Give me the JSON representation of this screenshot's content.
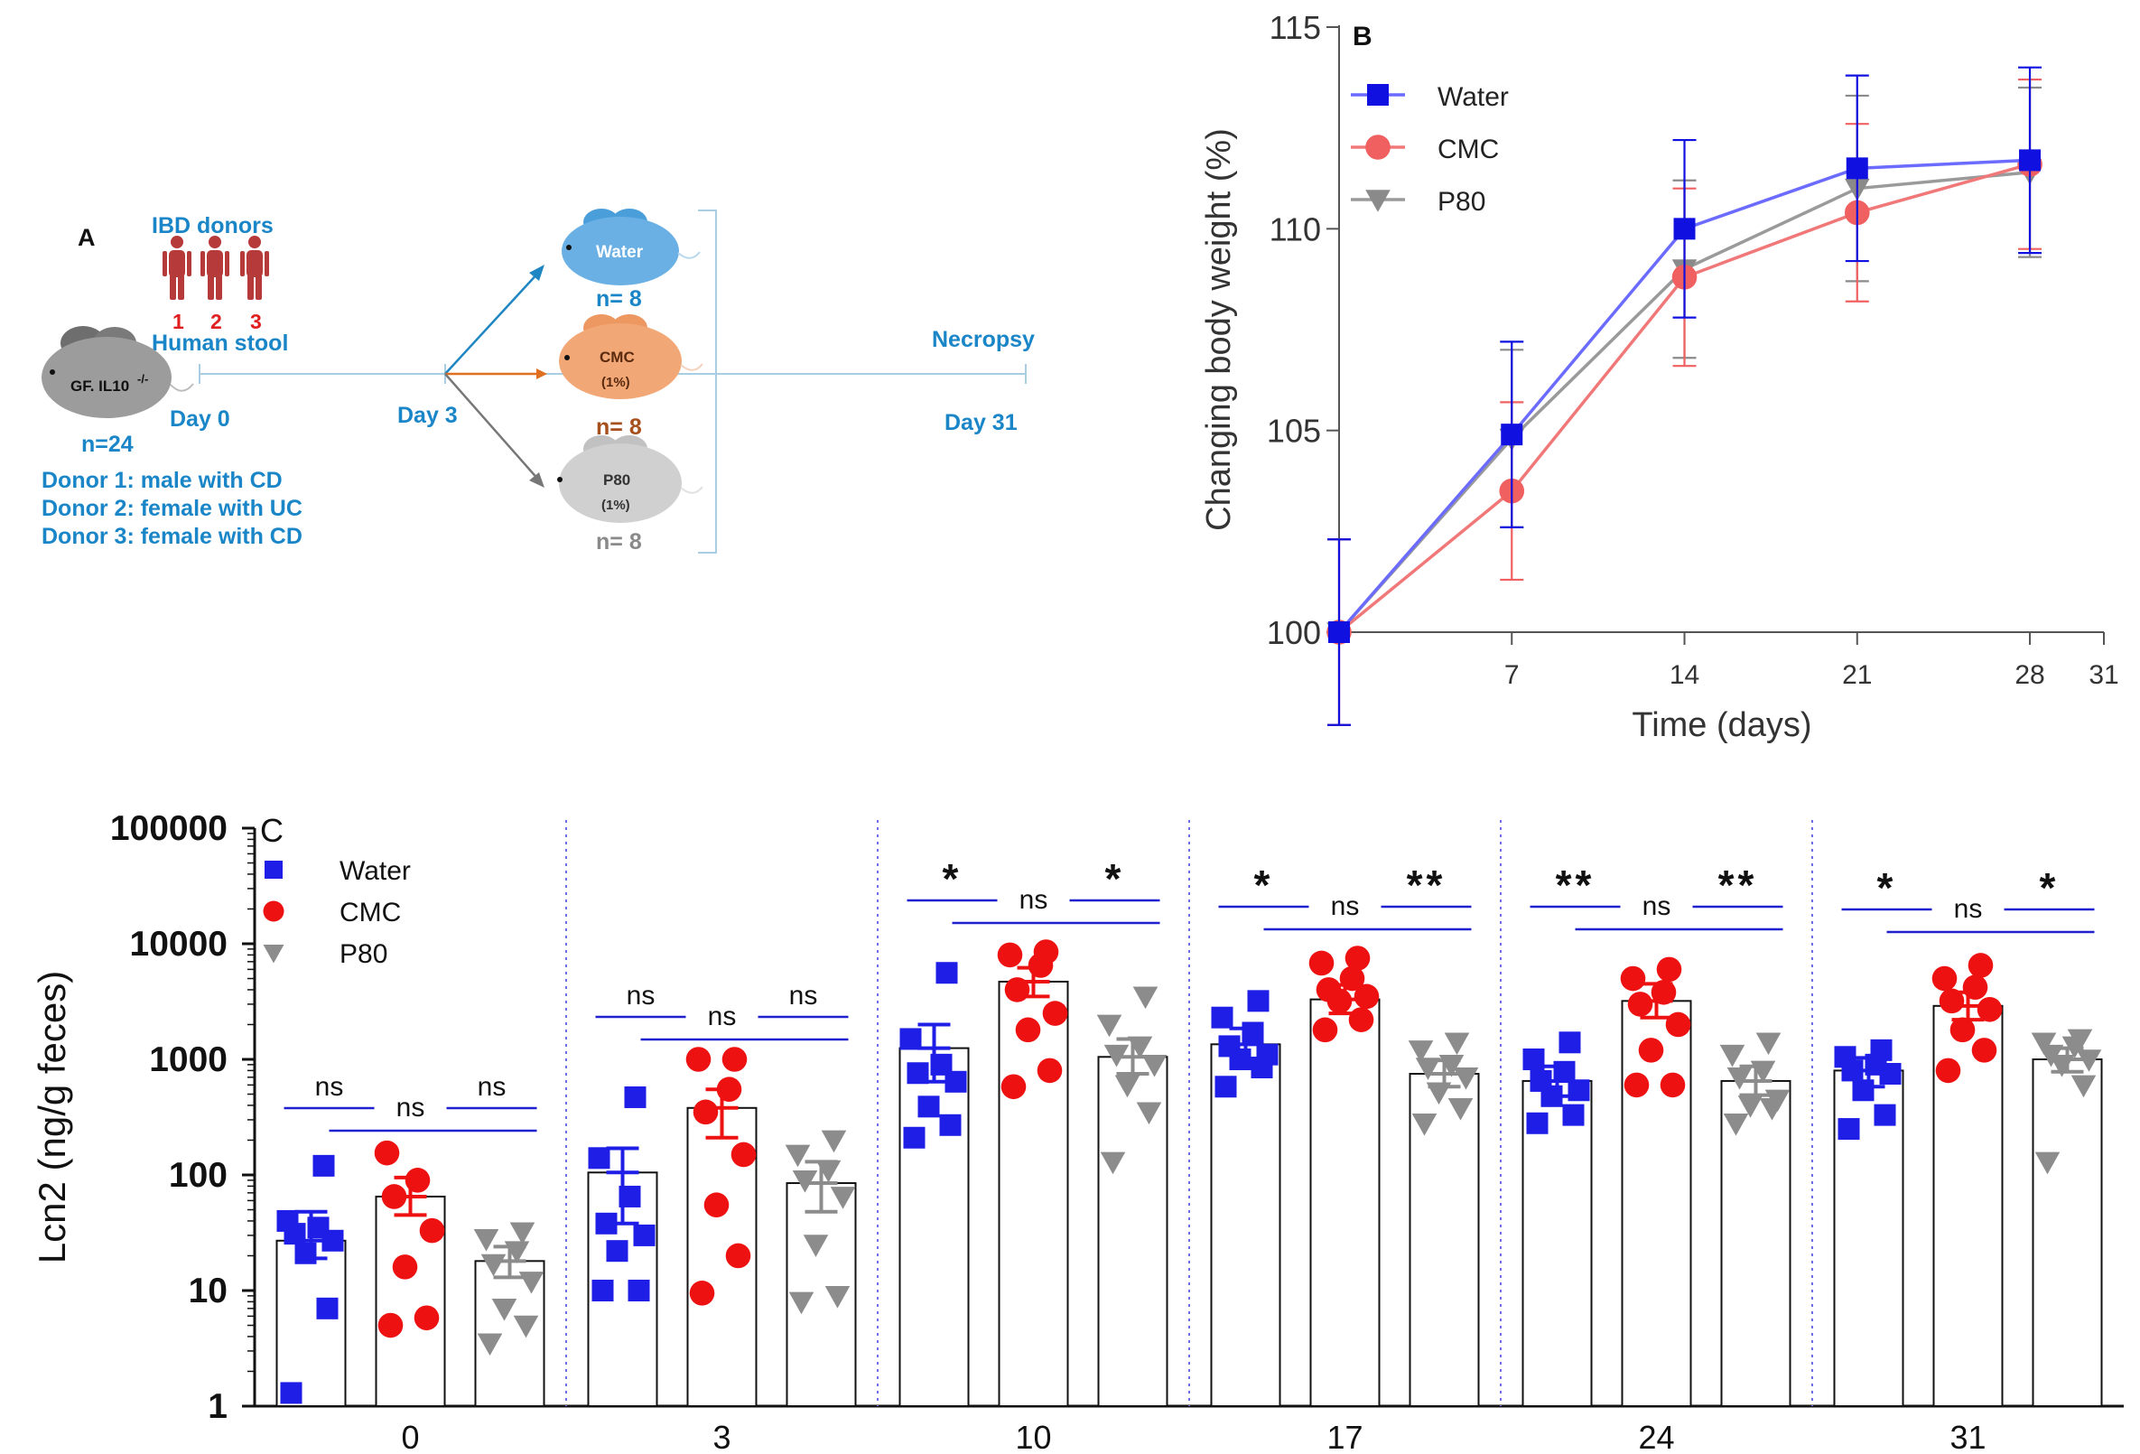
{
  "panel_a": {
    "label": "A",
    "donors_title": "IBD donors",
    "donor_numbers": [
      "1",
      "2",
      "3"
    ],
    "stool_label": "Human stool",
    "mouse_label": "GF. IL10",
    "mouse_sup": "-/-",
    "mouse_n": "n=24",
    "day0": "Day 0",
    "day3": "Day 3",
    "day31": "Day 31",
    "necropsy": "Necropsy",
    "groups": [
      {
        "name": "Water",
        "sub": "",
        "n": "n= 8",
        "color": "#6ab0e4",
        "text_color": "#1a86c7"
      },
      {
        "name": "CMC",
        "sub": "(1%)",
        "n": "n= 8",
        "color": "#f2a776",
        "text_color": "#a6501e"
      },
      {
        "name": "P80",
        "sub": "(1%)",
        "n": "n= 8",
        "color": "#d0d0d0",
        "text_color": "#8a8a8a"
      }
    ],
    "donor_lines": [
      "Donor 1: male with CD",
      "Donor 2: female with UC",
      "Donor 3: female with CD"
    ],
    "colors": {
      "title": "#1a86c7",
      "donor_figure": "#b73a3a",
      "donor_num": "#e02020",
      "arrow_water": "#1e86c2",
      "arrow_cmc": "#e07020",
      "arrow_p80": "#777777"
    }
  },
  "chart_data": [
    {
      "panel": "B",
      "type": "line",
      "xlabel": "Time (days)",
      "ylabel": "Changing body weight (%)",
      "xlim": [
        0,
        31
      ],
      "ylim": [
        100,
        115
      ],
      "xticks": [
        7,
        14,
        21,
        28,
        31
      ],
      "yticks": [
        100,
        105,
        110,
        115
      ],
      "x": [
        0,
        7,
        14,
        21,
        28
      ],
      "legend_position": "top-left",
      "series": [
        {
          "name": "Water",
          "marker": "square",
          "color": "#1010e0",
          "line_color": "#6b6bff",
          "values": [
            100.0,
            104.9,
            110.0,
            111.5,
            111.7
          ],
          "error": [
            2.3,
            2.3,
            2.2,
            2.3,
            2.3
          ]
        },
        {
          "name": "CMC",
          "marker": "circle",
          "color": "#f06060",
          "line_color": "#f07878",
          "values": [
            100.0,
            103.5,
            108.8,
            110.4,
            111.6
          ],
          "error": [
            2.3,
            2.2,
            2.2,
            2.2,
            2.1
          ]
        },
        {
          "name": "P80",
          "marker": "triangle-down",
          "color": "#8a8a8a",
          "line_color": "#9a9a9a",
          "values": [
            100.0,
            104.8,
            109.0,
            111.0,
            111.4
          ],
          "error": [
            2.3,
            2.2,
            2.2,
            2.3,
            2.1
          ]
        }
      ]
    },
    {
      "panel": "C",
      "type": "bar",
      "ylabel": "Lcn2 (ng/g feces)",
      "yscale": "log",
      "ylim": [
        1,
        100000
      ],
      "yticks": [
        "1",
        "10",
        "100",
        "1000",
        "10000",
        "100000"
      ],
      "categories": [
        "0",
        "3",
        "10",
        "17",
        "24",
        "31"
      ],
      "legend_position": "top-left",
      "series": [
        {
          "name": "Water",
          "marker": "square",
          "color": "#1e1ee6",
          "values": [
            27,
            105,
            1250,
            1350,
            650,
            800
          ],
          "sem": [
            [
              19,
              48
            ],
            [
              38,
              170
            ],
            [
              640,
              2000
            ],
            [
              1000,
              1850
            ],
            [
              480,
              870
            ],
            [
              580,
              1030
            ]
          ],
          "points": [
            [
              1.3,
              7,
              21,
              27,
              31,
              35,
              40,
              120
            ],
            [
              10,
              10,
              22,
              30,
              38,
              65,
              140,
              470
            ],
            [
              210,
              270,
              390,
              640,
              760,
              900,
              1500,
              5600
            ],
            [
              580,
              850,
              1000,
              1100,
              1300,
              1700,
              2300,
              3200
            ],
            [
              280,
              330,
              480,
              540,
              650,
              780,
              1000,
              1400
            ],
            [
              250,
              330,
              540,
              750,
              800,
              900,
              1050,
              1200
            ]
          ]
        },
        {
          "name": "CMC",
          "marker": "circle",
          "color": "#ee1111",
          "values": [
            65,
            380,
            4700,
            3300,
            3200,
            2900
          ],
          "sem": [
            [
              45,
              95
            ],
            [
              210,
              550
            ],
            [
              3500,
              6200
            ],
            [
              2500,
              4400
            ],
            [
              2300,
              4500
            ],
            [
              2200,
              3800
            ]
          ],
          "points": [
            [
              5,
              5.8,
              16,
              33,
              65,
              90,
              155
            ],
            [
              9.5,
              20,
              55,
              150,
              350,
              550,
              1000,
              1000
            ],
            [
              580,
              800,
              1800,
              2500,
              4000,
              6500,
              8000,
              8500
            ],
            [
              1800,
              2200,
              3200,
              3500,
              4000,
              5000,
              6800,
              7500
            ],
            [
              600,
              600,
              1200,
              2000,
              3000,
              3800,
              5000,
              6000
            ],
            [
              800,
              1200,
              1800,
              2700,
              3200,
              4200,
              5000,
              6500
            ]
          ]
        },
        {
          "name": "P80",
          "marker": "triangle-down",
          "color": "#8c8c8c",
          "values": [
            18,
            85,
            1050,
            750,
            650,
            1000
          ],
          "sem": [
            [
              13,
              24
            ],
            [
              48,
              130
            ],
            [
              750,
              1500
            ],
            [
              580,
              980
            ],
            [
              490,
              870
            ],
            [
              780,
              1250
            ]
          ],
          "points": [
            [
              3.5,
              5,
              7,
              12,
              17,
              22,
              28,
              32
            ],
            [
              8,
              9,
              25,
              65,
              90,
              110,
              150,
              200
            ],
            [
              130,
              350,
              600,
              900,
              1100,
              1300,
              2000,
              3500
            ],
            [
              280,
              380,
              520,
              700,
              850,
              900,
              1200,
              1400
            ],
            [
              280,
              380,
              400,
              450,
              700,
              800,
              1100,
              1400
            ],
            [
              130,
              600,
              900,
              1000,
              1100,
              1300,
              1400,
              1500
            ]
          ]
        }
      ],
      "comparisons": [
        {
          "labels": [
            "ns",
            "ns",
            "ns"
          ]
        },
        {
          "labels": [
            "ns",
            "ns",
            "ns"
          ]
        },
        {
          "labels": [
            "*",
            "ns",
            "*"
          ]
        },
        {
          "labels": [
            "*",
            "ns",
            "**"
          ]
        },
        {
          "labels": [
            "**",
            "ns",
            "**"
          ]
        },
        {
          "labels": [
            "*",
            "ns",
            "*"
          ]
        }
      ],
      "significance_color": "#2020d0",
      "separator_color": "#6d6df0"
    }
  ]
}
